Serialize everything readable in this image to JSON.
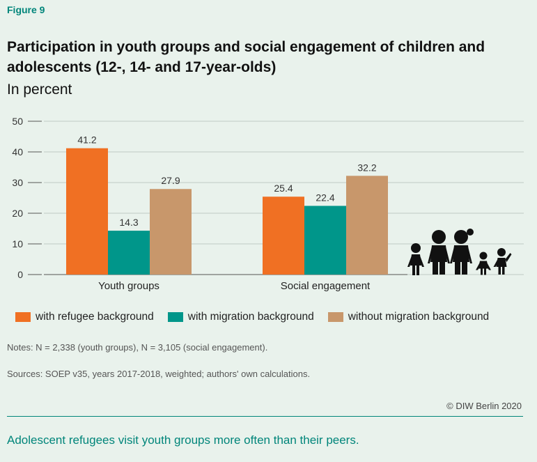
{
  "figure_label": "Figure 9",
  "title": "Participation in youth groups and social engagement of children and adolescents (12-, 14- and 17-year-olds)",
  "subtitle": "In percent",
  "notes": "Notes: N = 2,338 (youth groups), N = 3,105 (social engagement).",
  "sources": "Sources: SOEP v35, years 2017-2018, weighted; authors' own calculations.",
  "copyright": "© DIW Berlin 2020",
  "caption": "Adolescent refugees visit youth groups more often than their peers.",
  "icons": [
    "children-silhouette-icon"
  ],
  "chart_data": {
    "type": "bar",
    "categories": [
      "Youth groups",
      "Social engagement"
    ],
    "series": [
      {
        "name": "with refugee background",
        "values": [
          41.2,
          25.4
        ],
        "color": "#f07023"
      },
      {
        "name": "with migration background",
        "values": [
          14.3,
          22.4
        ],
        "color": "#00968a"
      },
      {
        "name": "without migration background",
        "values": [
          27.9,
          32.2
        ],
        "color": "#c8976b"
      }
    ],
    "ylim": [
      0,
      50
    ],
    "yticks": [
      "0",
      "10",
      "20",
      "30",
      "40",
      "50"
    ],
    "value_labels": [
      [
        "41.2",
        "25.4"
      ],
      [
        "14.3",
        "22.4"
      ],
      [
        "27.9",
        "32.2"
      ]
    ],
    "grid": true,
    "legend_position": "bottom"
  }
}
